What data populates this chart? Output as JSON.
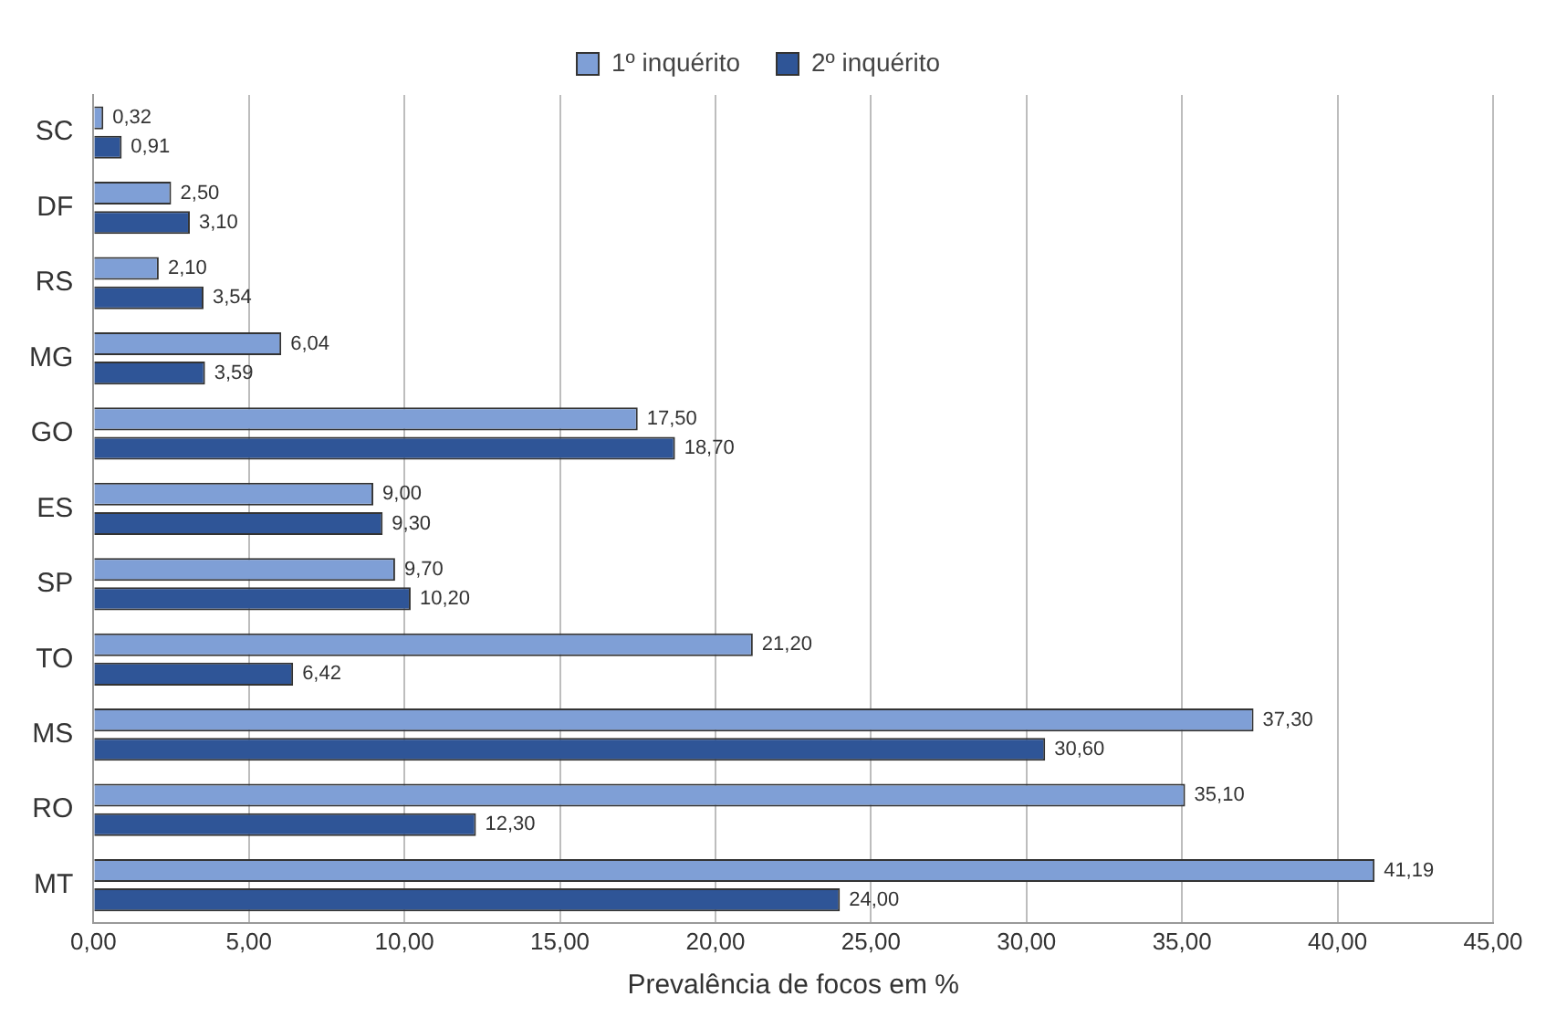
{
  "chart_data": {
    "type": "bar",
    "orientation": "horizontal",
    "xlabel": "Prevalência de focos em %",
    "categories": [
      "SC",
      "DF",
      "RS",
      "MG",
      "GO",
      "ES",
      "SP",
      "TO",
      "MS",
      "RO",
      "MT"
    ],
    "series": [
      {
        "name": "1º inquérito",
        "color": "#7f9fd6",
        "values": [
          0.32,
          2.5,
          2.1,
          6.04,
          17.5,
          9.0,
          9.7,
          21.2,
          37.3,
          35.1,
          41.19
        ],
        "value_labels": [
          "0,32",
          "2,50",
          "2,10",
          "6,04",
          "17,50",
          "9,00",
          "9,70",
          "21,20",
          "37,30",
          "35,10",
          "41,19"
        ]
      },
      {
        "name": "2º inquérito",
        "color": "#2f5597",
        "values": [
          0.91,
          3.1,
          3.54,
          3.59,
          18.7,
          9.3,
          10.2,
          6.42,
          30.6,
          12.3,
          24.0
        ],
        "value_labels": [
          "0,91",
          "3,10",
          "3,54",
          "3,59",
          "18,70",
          "9,30",
          "10,20",
          "6,42",
          "30,60",
          "12,30",
          "24,00"
        ]
      }
    ],
    "xlim": [
      0,
      45
    ],
    "xticks": [
      {
        "value": 0,
        "label": "0,00"
      },
      {
        "value": 5,
        "label": "5,00"
      },
      {
        "value": 10,
        "label": "10,00"
      },
      {
        "value": 15,
        "label": "15,00"
      },
      {
        "value": 20,
        "label": "20,00"
      },
      {
        "value": 25,
        "label": "25,00"
      },
      {
        "value": 30,
        "label": "30,00"
      },
      {
        "value": 35,
        "label": "35,00"
      },
      {
        "value": 40,
        "label": "40,00"
      },
      {
        "value": 45,
        "label": "45,00"
      }
    ],
    "grid": "x",
    "legend": "top"
  }
}
